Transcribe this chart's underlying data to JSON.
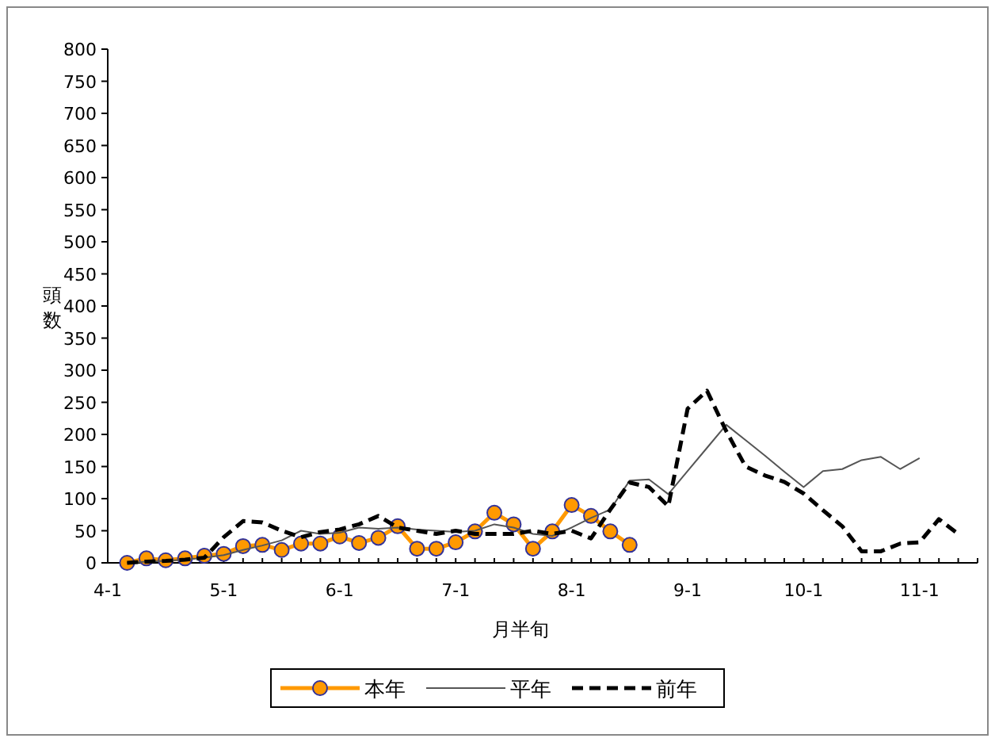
{
  "chart_data": {
    "type": "line",
    "xlabel": "月半旬",
    "ylabel": "頭数",
    "ylim": [
      0,
      800
    ],
    "categories": [
      "4-1",
      null,
      null,
      null,
      null,
      null,
      "5-1",
      null,
      null,
      null,
      null,
      null,
      "6-1",
      null,
      null,
      null,
      null,
      null,
      "7-1",
      null,
      null,
      null,
      null,
      null,
      "8-1",
      null,
      null,
      null,
      null,
      null,
      "9-1",
      null,
      null,
      null,
      null,
      null,
      "10-1",
      null,
      null,
      null,
      null,
      null,
      "11-1",
      null,
      null
    ],
    "yticks": [
      0,
      50,
      100,
      150,
      200,
      250,
      300,
      350,
      400,
      450,
      500,
      550,
      600,
      650,
      700,
      750,
      800
    ],
    "legend": "bottom",
    "grid": false,
    "series": [
      {
        "name": "本年",
        "color": "#ff9900",
        "marker": "circle",
        "line_style": "solid",
        "values": [
          null,
          0,
          7,
          4,
          7,
          11,
          14,
          26,
          28,
          20,
          30,
          30,
          41,
          31,
          39,
          57,
          22,
          22,
          32,
          49,
          78,
          60,
          22,
          49,
          90,
          73,
          49,
          28,
          null,
          null,
          null,
          null,
          null,
          null,
          null,
          null,
          null,
          null,
          null,
          null,
          null,
          null,
          null,
          null,
          null
        ]
      },
      {
        "name": "平年",
        "color": "#555555",
        "marker": "none",
        "line_style": "solid",
        "values": [
          null,
          0,
          2,
          3,
          5,
          8,
          12,
          20,
          27,
          35,
          50,
          45,
          47,
          55,
          53,
          55,
          52,
          50,
          48,
          50,
          60,
          55,
          45,
          42,
          55,
          70,
          83,
          128,
          130,
          107,
          143,
          179,
          215,
          191,
          167,
          142,
          118,
          143,
          146,
          160,
          165,
          146,
          163,
          null,
          null
        ]
      },
      {
        "name": "前年",
        "color": "#000000",
        "marker": "none",
        "line_style": "dashed",
        "values": [
          null,
          0,
          2,
          3,
          5,
          8,
          40,
          65,
          63,
          50,
          40,
          48,
          52,
          60,
          73,
          55,
          50,
          45,
          50,
          45,
          45,
          45,
          50,
          45,
          50,
          38,
          83,
          125,
          118,
          88,
          240,
          268,
          205,
          150,
          136,
          126,
          108,
          82,
          57,
          18,
          18,
          30,
          32,
          68,
          45
        ]
      }
    ]
  }
}
